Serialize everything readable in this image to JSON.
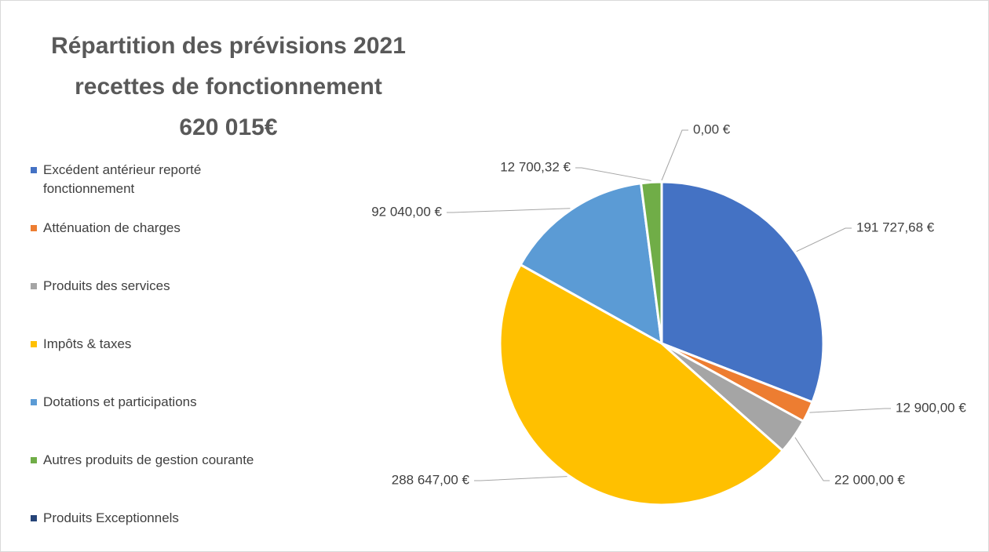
{
  "chart_data": {
    "type": "pie",
    "title": "Répartition des prévisions 2021\nrecettes de fonctionnement\n620 015€",
    "categories": [
      "Excédent antérieur reporté fonctionnement",
      "Atténuation de charges",
      "Produits des services",
      "Impôts & taxes",
      "Dotations et participations",
      "Autres produits de gestion courante",
      "Produits Exceptionnels"
    ],
    "values": [
      191727.68,
      12900,
      22000,
      288647,
      92040,
      12700.32,
      0
    ],
    "value_labels": [
      "191 727,68 €",
      "12 900,00 €",
      "22 000,00 €",
      "288 647,00 €",
      "92 040,00 €",
      "12 700,32 €",
      "0,00 €"
    ],
    "colors": [
      "#4472c4",
      "#ed7d31",
      "#a5a5a5",
      "#ffc000",
      "#5b9bd5",
      "#70ad47",
      "#264478"
    ],
    "legend": "left"
  }
}
